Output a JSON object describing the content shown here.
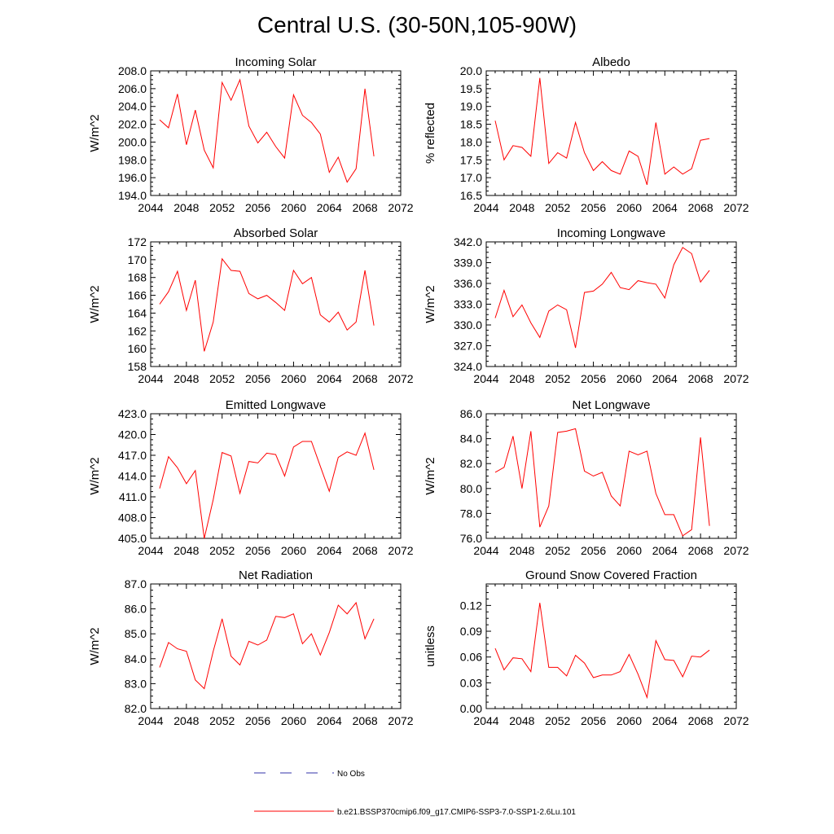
{
  "figure": {
    "title": "Central U.S. (30-50N,105-90W)",
    "legend": {
      "entries": [
        {
          "label": "No Obs",
          "color": "#3333aa",
          "style": "dashed"
        },
        {
          "label": "b.e21.BSSP370cmip6.f09_g17.CMIP6-SSP3-7.0-SSP1-2.6Lu.101",
          "color": "#ff0000",
          "style": "solid"
        }
      ]
    }
  },
  "chart_data": [
    {
      "type": "line",
      "title": "Incoming Solar",
      "ylabel": "W/m^2",
      "xlim": [
        2044,
        2072
      ],
      "ylim": [
        194,
        208
      ],
      "xticks": [
        "2044",
        "2048",
        "2052",
        "2056",
        "2060",
        "2064",
        "2068",
        "2072"
      ],
      "yticks": [
        "194.0",
        "196.0",
        "198.0",
        "200.0",
        "202.0",
        "204.0",
        "206.0",
        "208.0"
      ],
      "grid": false,
      "color": "#ff0000",
      "x": [
        2045,
        2046,
        2047,
        2048,
        2049,
        2050,
        2051,
        2052,
        2053,
        2054,
        2055,
        2056,
        2057,
        2058,
        2059,
        2060,
        2061,
        2062,
        2063,
        2064,
        2065,
        2066,
        2067,
        2068,
        2069
      ],
      "values": [
        202.5,
        201.6,
        205.4,
        199.7,
        203.6,
        199.1,
        197.1,
        206.7,
        204.7,
        207.0,
        201.8,
        199.9,
        201.1,
        199.5,
        198.2,
        205.3,
        203.0,
        202.2,
        200.9,
        196.6,
        198.3,
        195.5,
        197.0,
        206.0,
        198.4
      ]
    },
    {
      "type": "line",
      "title": "Albedo",
      "ylabel": "% reflected",
      "xlim": [
        2044,
        2072
      ],
      "ylim": [
        16.5,
        20.0
      ],
      "xticks": [
        "2044",
        "2048",
        "2052",
        "2056",
        "2060",
        "2064",
        "2068",
        "2072"
      ],
      "yticks": [
        "16.5",
        "17.0",
        "17.5",
        "18.0",
        "18.5",
        "19.0",
        "19.5",
        "20.0"
      ],
      "grid": false,
      "color": "#ff0000",
      "x": [
        2045,
        2046,
        2047,
        2048,
        2049,
        2050,
        2051,
        2052,
        2053,
        2054,
        2055,
        2056,
        2057,
        2058,
        2059,
        2060,
        2061,
        2062,
        2063,
        2064,
        2065,
        2066,
        2067,
        2068,
        2069
      ],
      "values": [
        18.6,
        17.5,
        17.9,
        17.85,
        17.6,
        19.8,
        17.4,
        17.7,
        17.55,
        18.55,
        17.7,
        17.2,
        17.45,
        17.2,
        17.1,
        17.75,
        17.6,
        16.8,
        18.55,
        17.1,
        17.3,
        17.1,
        17.25,
        18.05,
        18.1
      ]
    },
    {
      "type": "line",
      "title": "Absorbed Solar",
      "ylabel": "W/m^2",
      "xlim": [
        2044,
        2072
      ],
      "ylim": [
        158,
        172
      ],
      "xticks": [
        "2044",
        "2048",
        "2052",
        "2056",
        "2060",
        "2064",
        "2068",
        "2072"
      ],
      "yticks": [
        "158",
        "160",
        "162",
        "164",
        "166",
        "168",
        "170",
        "172"
      ],
      "grid": false,
      "color": "#ff0000",
      "x": [
        2045,
        2046,
        2047,
        2048,
        2049,
        2050,
        2051,
        2052,
        2053,
        2054,
        2055,
        2056,
        2057,
        2058,
        2059,
        2060,
        2061,
        2062,
        2063,
        2064,
        2065,
        2066,
        2067,
        2068,
        2069
      ],
      "values": [
        165.0,
        166.4,
        168.7,
        164.3,
        167.7,
        159.7,
        163.0,
        170.1,
        168.8,
        168.7,
        166.2,
        165.6,
        166.0,
        165.2,
        164.3,
        168.8,
        167.3,
        168.0,
        163.8,
        163.0,
        164.1,
        162.1,
        163.0,
        168.8,
        162.6
      ]
    },
    {
      "type": "line",
      "title": "Incoming Longwave",
      "ylabel": "W/m^2",
      "xlim": [
        2044,
        2072
      ],
      "ylim": [
        324,
        342
      ],
      "xticks": [
        "2044",
        "2048",
        "2052",
        "2056",
        "2060",
        "2064",
        "2068",
        "2072"
      ],
      "yticks": [
        "324.0",
        "327.0",
        "330.0",
        "333.0",
        "336.0",
        "339.0",
        "342.0"
      ],
      "grid": false,
      "color": "#ff0000",
      "x": [
        2045,
        2046,
        2047,
        2048,
        2049,
        2050,
        2051,
        2052,
        2053,
        2054,
        2055,
        2056,
        2057,
        2058,
        2059,
        2060,
        2061,
        2062,
        2063,
        2064,
        2065,
        2066,
        2067,
        2068,
        2069
      ],
      "values": [
        331.0,
        335.0,
        331.2,
        332.9,
        330.3,
        328.2,
        332.0,
        332.9,
        332.2,
        326.7,
        334.7,
        334.9,
        335.9,
        337.6,
        335.4,
        335.1,
        336.4,
        336.1,
        335.9,
        333.9,
        338.7,
        341.2,
        340.3,
        336.2,
        337.9
      ]
    },
    {
      "type": "line",
      "title": "Emitted Longwave",
      "ylabel": "W/m^2",
      "xlim": [
        2044,
        2072
      ],
      "ylim": [
        405,
        423
      ],
      "xticks": [
        "2044",
        "2048",
        "2052",
        "2056",
        "2060",
        "2064",
        "2068",
        "2072"
      ],
      "yticks": [
        "405.0",
        "408.0",
        "411.0",
        "414.0",
        "417.0",
        "420.0",
        "423.0"
      ],
      "grid": false,
      "color": "#ff0000",
      "x": [
        2045,
        2046,
        2047,
        2048,
        2049,
        2050,
        2051,
        2052,
        2053,
        2054,
        2055,
        2056,
        2057,
        2058,
        2059,
        2060,
        2061,
        2062,
        2063,
        2064,
        2065,
        2066,
        2067,
        2068,
        2069
      ],
      "values": [
        412.2,
        416.8,
        415.2,
        412.9,
        414.8,
        405.0,
        410.6,
        417.4,
        416.9,
        411.5,
        416.1,
        415.9,
        417.3,
        417.1,
        414.0,
        418.2,
        419.0,
        419.0,
        415.4,
        411.8,
        416.7,
        417.5,
        417.0,
        420.2,
        414.9
      ]
    },
    {
      "type": "line",
      "title": "Net Longwave",
      "ylabel": "W/m^2",
      "xlim": [
        2044,
        2072
      ],
      "ylim": [
        76,
        86
      ],
      "xticks": [
        "2044",
        "2048",
        "2052",
        "2056",
        "2060",
        "2064",
        "2068",
        "2072"
      ],
      "yticks": [
        "76.0",
        "78.0",
        "80.0",
        "82.0",
        "84.0",
        "86.0"
      ],
      "grid": false,
      "color": "#ff0000",
      "x": [
        2045,
        2046,
        2047,
        2048,
        2049,
        2050,
        2051,
        2052,
        2053,
        2054,
        2055,
        2056,
        2057,
        2058,
        2059,
        2060,
        2061,
        2062,
        2063,
        2064,
        2065,
        2066,
        2067,
        2068,
        2069
      ],
      "values": [
        81.3,
        81.7,
        84.2,
        80.0,
        84.6,
        76.9,
        78.6,
        84.5,
        84.6,
        84.8,
        81.4,
        81.0,
        81.3,
        79.4,
        78.6,
        83.0,
        82.7,
        83.0,
        79.6,
        77.9,
        77.9,
        76.2,
        76.7,
        84.1,
        77.0
      ]
    },
    {
      "type": "line",
      "title": "Net Radiation",
      "ylabel": "W/m^2",
      "xlim": [
        2044,
        2072
      ],
      "ylim": [
        82,
        87
      ],
      "xticks": [
        "2044",
        "2048",
        "2052",
        "2056",
        "2060",
        "2064",
        "2068",
        "2072"
      ],
      "yticks": [
        "82.0",
        "83.0",
        "84.0",
        "85.0",
        "86.0",
        "87.0"
      ],
      "grid": false,
      "color": "#ff0000",
      "x": [
        2045,
        2046,
        2047,
        2048,
        2049,
        2050,
        2051,
        2052,
        2053,
        2054,
        2055,
        2056,
        2057,
        2058,
        2059,
        2060,
        2061,
        2062,
        2063,
        2064,
        2065,
        2066,
        2067,
        2068,
        2069
      ],
      "values": [
        83.65,
        84.65,
        84.4,
        84.3,
        83.15,
        82.8,
        84.3,
        85.6,
        84.1,
        83.75,
        84.7,
        84.55,
        84.75,
        85.7,
        85.65,
        85.8,
        84.6,
        85.0,
        84.15,
        85.05,
        86.15,
        85.8,
        86.25,
        84.8,
        85.6
      ]
    },
    {
      "type": "line",
      "title": "Ground Snow Covered Fraction",
      "ylabel": "unitless",
      "xlim": [
        2044,
        2072
      ],
      "ylim": [
        0,
        0.145
      ],
      "xticks": [
        "2044",
        "2048",
        "2052",
        "2056",
        "2060",
        "2064",
        "2068",
        "2072"
      ],
      "yticks": [
        "0.00",
        "0.03",
        "0.06",
        "0.09",
        "0.12"
      ],
      "grid": false,
      "color": "#ff0000",
      "x": [
        2045,
        2046,
        2047,
        2048,
        2049,
        2050,
        2051,
        2052,
        2053,
        2054,
        2055,
        2056,
        2057,
        2058,
        2059,
        2060,
        2061,
        2062,
        2063,
        2064,
        2065,
        2066,
        2067,
        2068,
        2069
      ],
      "values": [
        0.07,
        0.045,
        0.059,
        0.058,
        0.043,
        0.123,
        0.048,
        0.048,
        0.038,
        0.062,
        0.053,
        0.036,
        0.039,
        0.039,
        0.043,
        0.063,
        0.04,
        0.013,
        0.079,
        0.057,
        0.056,
        0.037,
        0.061,
        0.06,
        0.068
      ]
    }
  ]
}
